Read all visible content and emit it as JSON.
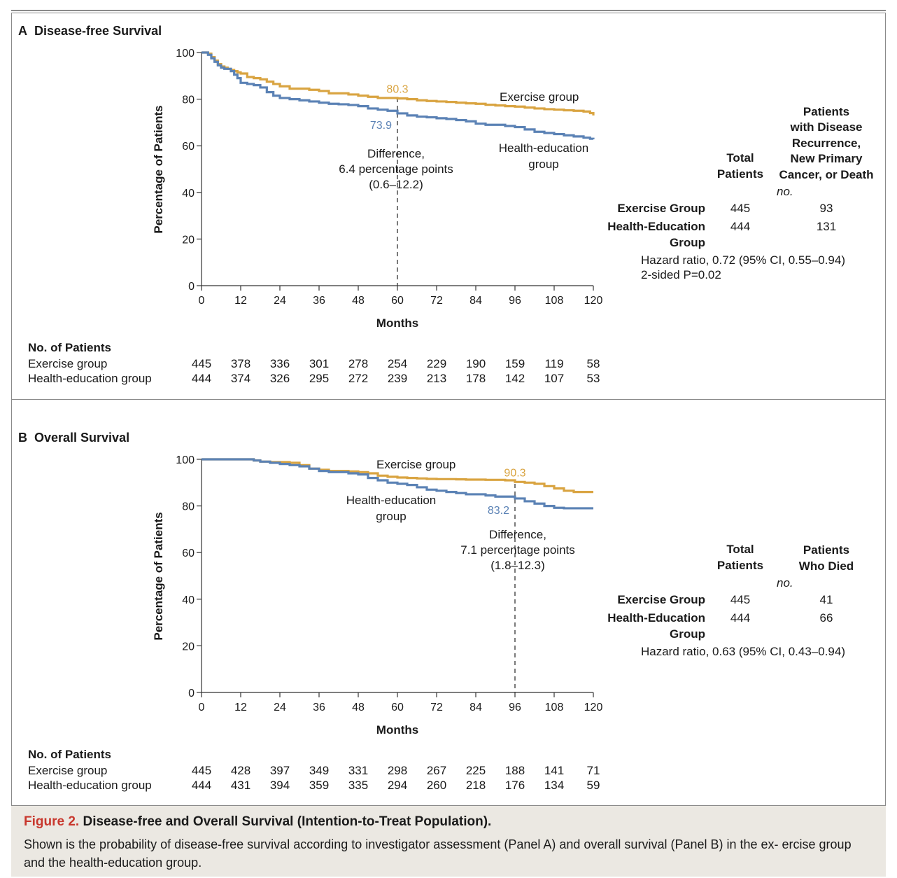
{
  "figure": {
    "label": "Figure 2.",
    "title": "Disease-free and Overall Survival (Intention-to-Treat Population).",
    "caption": "Shown is the probability of disease-free survival according to investigator assessment (Panel A) and overall survival (Panel B) in the ex- ercise group and the health-education group."
  },
  "colors": {
    "exercise": "#d9a441",
    "health": "#5b82b5"
  },
  "chart_data": [
    {
      "type": "line",
      "panel_letter": "A",
      "title": "Disease-free Survival",
      "xlabel": "Months",
      "ylabel": "Percentage of Patients",
      "xlim": [
        0,
        120
      ],
      "ylim": [
        0,
        100
      ],
      "xticks": [
        0,
        12,
        24,
        36,
        48,
        60,
        72,
        84,
        96,
        108,
        120
      ],
      "yticks": [
        0,
        20,
        40,
        60,
        80,
        100
      ],
      "series": [
        {
          "name": "Exercise group",
          "key": "exercise",
          "x": [
            0,
            1,
            2,
            3,
            4,
            5,
            6,
            7,
            8,
            9,
            10,
            11,
            12,
            14,
            16,
            18,
            20,
            22,
            24,
            27,
            30,
            33,
            36,
            39,
            42,
            45,
            48,
            51,
            54,
            57,
            60,
            63,
            66,
            69,
            72,
            75,
            78,
            81,
            84,
            87,
            90,
            93,
            96,
            99,
            102,
            105,
            108,
            111,
            114,
            117,
            119,
            120
          ],
          "y": [
            100,
            100,
            99.5,
            98,
            96.5,
            95,
            94,
            93.5,
            93,
            92.5,
            92,
            91.5,
            91,
            89.5,
            89,
            88.5,
            87.5,
            86.5,
            85.5,
            84.5,
            84.5,
            84,
            83.5,
            82.5,
            82.5,
            82,
            81.5,
            81,
            80.5,
            80.5,
            80.3,
            80,
            79.5,
            79.2,
            79,
            78.8,
            78.5,
            78.2,
            78,
            77.6,
            77.3,
            77,
            76.8,
            76.4,
            76,
            75.7,
            75.5,
            75.2,
            75,
            74.7,
            74,
            73
          ]
        },
        {
          "name": "Health-education group",
          "key": "health",
          "x": [
            0,
            1,
            2,
            3,
            4,
            5,
            6,
            7,
            8,
            9,
            10,
            11,
            12,
            14,
            16,
            18,
            20,
            22,
            24,
            27,
            30,
            33,
            36,
            39,
            42,
            45,
            48,
            51,
            54,
            57,
            60,
            63,
            66,
            69,
            72,
            75,
            78,
            81,
            84,
            87,
            90,
            93,
            96,
            99,
            102,
            105,
            108,
            111,
            114,
            117,
            119,
            120
          ],
          "y": [
            100,
            100,
            99,
            97.5,
            96,
            94.5,
            93.5,
            93,
            93,
            92,
            90.5,
            89,
            87,
            86.5,
            86,
            85,
            83,
            81.5,
            80.5,
            80,
            79.5,
            79,
            78.5,
            78,
            77.8,
            77.5,
            77,
            76,
            75.5,
            75,
            73.9,
            73,
            72.5,
            72.2,
            71.8,
            71.5,
            71,
            70.5,
            69.5,
            69,
            69,
            68.5,
            68,
            67,
            66,
            65.5,
            65,
            64.5,
            64,
            63.5,
            63,
            62.8
          ]
        }
      ],
      "annotations": {
        "exercise_value": "80.3",
        "health_value": "73.9",
        "vline_x": 60,
        "difference": [
          "Difference,",
          "6.4 percentage points",
          "(0.6–12.2)"
        ],
        "exercise_label": "Exercise group",
        "health_label": [
          "Health-education",
          "group"
        ]
      },
      "risk_table": {
        "title": "No. of Patients",
        "rows": [
          {
            "label": "Exercise group",
            "values": [
              445,
              378,
              336,
              301,
              278,
              254,
              229,
              190,
              159,
              119,
              58
            ]
          },
          {
            "label": "Health-education group",
            "values": [
              444,
              374,
              326,
              295,
              272,
              239,
              213,
              178,
              142,
              107,
              53
            ]
          }
        ]
      },
      "events_table": {
        "col_total": [
          "Total",
          "Patients"
        ],
        "col_events": [
          "Patients",
          "with Disease",
          "Recurrence,",
          "New Primary",
          "Cancer, or Death"
        ],
        "unit": "no.",
        "rows": [
          {
            "label": [
              "Exercise Group"
            ],
            "total": 445,
            "events": 93
          },
          {
            "label": [
              "Health-Education",
              "Group"
            ],
            "total": 444,
            "events": 131
          }
        ],
        "stats": [
          "Hazard ratio, 0.72 (95% CI, 0.55–0.94)",
          "2-sided P=0.02"
        ]
      }
    },
    {
      "type": "line",
      "panel_letter": "B",
      "title": "Overall Survival",
      "xlabel": "Months",
      "ylabel": "Percentage of Patients",
      "xlim": [
        0,
        120
      ],
      "ylim": [
        0,
        100
      ],
      "xticks": [
        0,
        12,
        24,
        36,
        48,
        60,
        72,
        84,
        96,
        108,
        120
      ],
      "yticks": [
        0,
        20,
        40,
        60,
        80,
        100
      ],
      "series": [
        {
          "name": "Exercise group",
          "key": "exercise",
          "x": [
            0,
            6,
            12,
            16,
            18,
            21,
            24,
            27,
            30,
            33,
            36,
            39,
            42,
            45,
            48,
            51,
            54,
            57,
            60,
            63,
            66,
            69,
            72,
            75,
            78,
            81,
            84,
            87,
            90,
            93,
            96,
            99,
            102,
            105,
            108,
            111,
            114,
            117,
            120
          ],
          "y": [
            100,
            100,
            100,
            99.5,
            99,
            98.8,
            98.8,
            98.5,
            97.5,
            96,
            95.5,
            95,
            95,
            94.8,
            94.5,
            94,
            93,
            92.5,
            92.2,
            92,
            91.8,
            91.6,
            91.5,
            91.5,
            91.4,
            91.3,
            91.3,
            91.2,
            91.2,
            91,
            90.3,
            90,
            89.5,
            88.5,
            87.5,
            86.5,
            86,
            86,
            86
          ]
        },
        {
          "name": "Health-education group",
          "key": "health",
          "x": [
            0,
            6,
            12,
            16,
            18,
            21,
            24,
            27,
            30,
            33,
            36,
            39,
            42,
            45,
            48,
            51,
            54,
            57,
            60,
            63,
            66,
            69,
            72,
            75,
            78,
            81,
            84,
            87,
            90,
            93,
            96,
            99,
            102,
            105,
            108,
            111,
            114,
            117,
            120
          ],
          "y": [
            100,
            100,
            100,
            99.5,
            99,
            98.5,
            98,
            97.5,
            97,
            96,
            95,
            94.5,
            94.5,
            94,
            93.5,
            92,
            91,
            90,
            89.5,
            89,
            88,
            87,
            86.5,
            86,
            85.5,
            85,
            85,
            84.5,
            84,
            84,
            83.2,
            82,
            81,
            80,
            79.2,
            79,
            79,
            79,
            79
          ]
        }
      ],
      "annotations": {
        "exercise_value": "90.3",
        "health_value": "83.2",
        "vline_x": 96,
        "difference": [
          "Difference,",
          "7.1 percentage points",
          "(1.8–12.3)"
        ],
        "exercise_label": "Exercise group",
        "health_label": [
          "Health-education",
          "group"
        ]
      },
      "risk_table": {
        "title": "No. of Patients",
        "rows": [
          {
            "label": "Exercise group",
            "values": [
              445,
              428,
              397,
              349,
              331,
              298,
              267,
              225,
              188,
              141,
              71
            ]
          },
          {
            "label": "Health-education group",
            "values": [
              444,
              431,
              394,
              359,
              335,
              294,
              260,
              218,
              176,
              134,
              59
            ]
          }
        ]
      },
      "events_table": {
        "col_total": [
          "Total",
          "Patients"
        ],
        "col_events": [
          "Patients",
          "Who Died"
        ],
        "unit": "no.",
        "rows": [
          {
            "label": [
              "Exercise Group"
            ],
            "total": 445,
            "events": 41
          },
          {
            "label": [
              "Health-Education",
              "Group"
            ],
            "total": 444,
            "events": 66
          }
        ],
        "stats": [
          "Hazard ratio, 0.63 (95% CI, 0.43–0.94)"
        ]
      }
    }
  ]
}
